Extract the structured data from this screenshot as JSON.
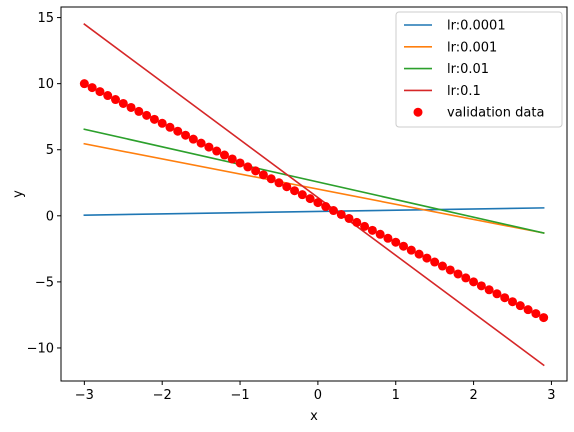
{
  "chart_data": {
    "type": "line",
    "xlabel": "x",
    "ylabel": "y",
    "xlim": [
      -3.3,
      3.2
    ],
    "ylim": [
      -12.5,
      15.8
    ],
    "xticks": [
      -3,
      -2,
      -1,
      0,
      1,
      2,
      3
    ],
    "yticks": [
      -10,
      -5,
      0,
      5,
      10,
      15
    ],
    "xtick_labels": [
      "−3",
      "−2",
      "−1",
      "0",
      "1",
      "2",
      "3"
    ],
    "ytick_labels": [
      "−10",
      "−5",
      "0",
      "5",
      "10",
      "15"
    ],
    "grid": false,
    "legend_position": "top-right",
    "series": [
      {
        "name": "lr:0.0001",
        "type": "line",
        "color": "#1f77b4",
        "x": [
          -3.0,
          2.9
        ],
        "y": [
          0.05,
          0.6
        ]
      },
      {
        "name": "lr:0.001",
        "type": "line",
        "color": "#ff7f0e",
        "x": [
          -3.0,
          2.9
        ],
        "y": [
          5.45,
          -1.3
        ]
      },
      {
        "name": "lr:0.01",
        "type": "line",
        "color": "#2ca02c",
        "x": [
          -3.0,
          2.9
        ],
        "y": [
          6.55,
          -1.3
        ]
      },
      {
        "name": "lr:0.1",
        "type": "line",
        "color": "#d62728",
        "x": [
          -3.0,
          2.9
        ],
        "y": [
          14.5,
          -11.3
        ]
      },
      {
        "name": "validation data",
        "type": "scatter",
        "color": "#ff0000",
        "x": [
          -3.0,
          -2.9,
          -2.8,
          -2.7,
          -2.6,
          -2.5,
          -2.4,
          -2.3,
          -2.2,
          -2.1,
          -2.0,
          -1.9,
          -1.8,
          -1.7,
          -1.6,
          -1.5,
          -1.4,
          -1.3,
          -1.2,
          -1.1,
          -1.0,
          -0.9,
          -0.8,
          -0.7,
          -0.6,
          -0.5,
          -0.4,
          -0.3,
          -0.2,
          -0.1,
          0.0,
          0.1,
          0.2,
          0.3,
          0.4,
          0.5,
          0.6,
          0.7,
          0.8,
          0.9,
          1.0,
          1.1,
          1.2,
          1.3,
          1.4,
          1.5,
          1.6,
          1.7,
          1.8,
          1.9,
          2.0,
          2.1,
          2.2,
          2.3,
          2.4,
          2.5,
          2.6,
          2.7,
          2.8,
          2.9
        ],
        "y": [
          10.0,
          9.7,
          9.4,
          9.1,
          8.8,
          8.5,
          8.2,
          7.9,
          7.6,
          7.3,
          7.0,
          6.7,
          6.4,
          6.1,
          5.8,
          5.5,
          5.2,
          4.9,
          4.6,
          4.3,
          4.0,
          3.7,
          3.4,
          3.1,
          2.8,
          2.5,
          2.2,
          1.9,
          1.6,
          1.3,
          1.0,
          0.7,
          0.4,
          0.1,
          -0.2,
          -0.5,
          -0.8,
          -1.1,
          -1.4,
          -1.7,
          -2.0,
          -2.3,
          -2.6,
          -2.9,
          -3.2,
          -3.5,
          -3.8,
          -4.1,
          -4.4,
          -4.7,
          -5.0,
          -5.3,
          -5.6,
          -5.9,
          -6.2,
          -6.5,
          -6.8,
          -7.1,
          -7.4,
          -7.7
        ]
      }
    ]
  }
}
